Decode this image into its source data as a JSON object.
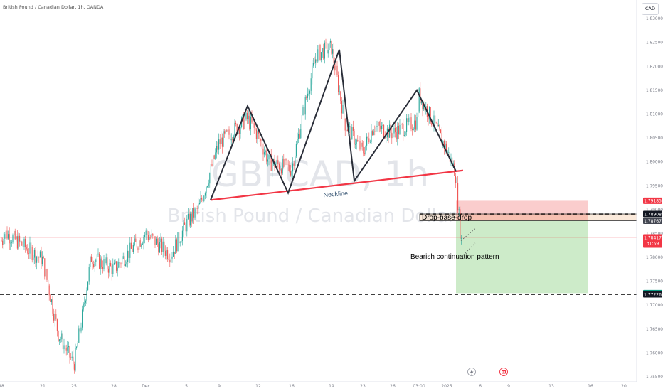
{
  "header": {
    "symbol_line": "British Pound / Canadian Dollar, 1h, OANDA",
    "currency": "CAD"
  },
  "watermark": {
    "ticker": "GBPCAD, 1h",
    "name": "British Pound / Canadian Dollar"
  },
  "colors": {
    "up": "#26a69a",
    "down": "#ef5350",
    "neckline": "#f23645",
    "pattern": "#2a2e39",
    "stop_zone": "#f8bcbc",
    "target_zone": "#cdebc9",
    "entry_zone": "#f7d9bd"
  },
  "annotations": {
    "neckline": "Neckline",
    "drop_base_drop": "Drop-base-drop",
    "bearish_pattern": "Bearish continuation pattern"
  },
  "bottom_icons": [
    "lightning-icon",
    "calendar-event-icon"
  ],
  "chart_data": {
    "type": "candlestick",
    "title": "British Pound / Canadian Dollar, 1h, OANDA",
    "ylim": [
      1.7541,
      1.8327
    ],
    "y_ticks": [
      "1.83000",
      "1.82500",
      "1.82000",
      "1.81500",
      "1.81000",
      "1.80500",
      "1.80000",
      "1.79500",
      "1.79000",
      "1.78500",
      "1.78000",
      "1.77500",
      "1.77000",
      "1.76500",
      "1.76000",
      "1.75500",
      "1.75000"
    ],
    "x_ticks": [
      "18",
      "21",
      "25",
      "28",
      "Dec",
      "5",
      "9",
      "12",
      "16",
      "19",
      "23",
      "26",
      "03:00",
      "2025",
      "6",
      "9",
      "13",
      "16",
      "20"
    ],
    "price_path": [
      [
        "18",
        1.7855
      ],
      [
        "21",
        1.7795
      ],
      [
        "23",
        1.764
      ],
      [
        "25",
        1.7575
      ],
      [
        "26",
        1.768
      ],
      [
        "27",
        1.78
      ],
      [
        "28",
        1.7775
      ],
      [
        "Dec",
        1.785
      ],
      [
        "4",
        1.7805
      ],
      [
        "5",
        1.787
      ],
      [
        "6",
        1.7905
      ],
      [
        "9",
        1.804
      ],
      [
        "11",
        1.809
      ],
      [
        "12",
        1.8055
      ],
      [
        "13",
        1.8
      ],
      [
        "16",
        1.7985
      ],
      [
        "17",
        1.813
      ],
      [
        "18",
        1.8225
      ],
      [
        "19",
        1.824
      ],
      [
        "20",
        1.808
      ],
      [
        "23",
        1.802
      ],
      [
        "24",
        1.8075
      ],
      [
        "26",
        1.806
      ],
      [
        "27",
        1.8085
      ],
      [
        "03:00",
        1.814
      ],
      [
        "31",
        1.808
      ],
      [
        "2025",
        1.8025
      ],
      [
        "2 Jan",
        1.798
      ],
      [
        "3 Jan",
        1.7835
      ]
    ],
    "pattern_points": [
      {
        "x": "7",
        "y": 1.792
      },
      {
        "x": "11",
        "y": 1.8117
      },
      {
        "x": "15",
        "y": 1.7935
      },
      {
        "x": "19",
        "y": 1.8235
      },
      {
        "x": "21",
        "y": 1.796
      },
      {
        "x": "27",
        "y": 1.815
      },
      {
        "x": "2025",
        "y": 1.798
      }
    ],
    "neckline": [
      {
        "x": "7",
        "y": 1.792
      },
      {
        "x": "2 Jan",
        "y": 1.7982
      }
    ],
    "short_position": {
      "entry_top": 1.78908,
      "entry": 1.78767,
      "stop": 1.79185,
      "target_top": 1.77251,
      "target": 1.77226
    },
    "horizontal_lines": [
      1.78908,
      1.77226
    ],
    "price_labels": [
      {
        "value": "1.79185",
        "color": "#f23645"
      },
      {
        "value": "1.78908",
        "color": "#131722"
      },
      {
        "value": "1.78767",
        "color": "#434651"
      },
      {
        "value": "1.78417",
        "sub": "31:59",
        "color": "#f23645"
      },
      {
        "value": "1.77251",
        "color": "#089981"
      },
      {
        "value": "1.77226",
        "color": "#131722"
      }
    ],
    "last_price": 1.78417,
    "countdown": "31:59"
  }
}
